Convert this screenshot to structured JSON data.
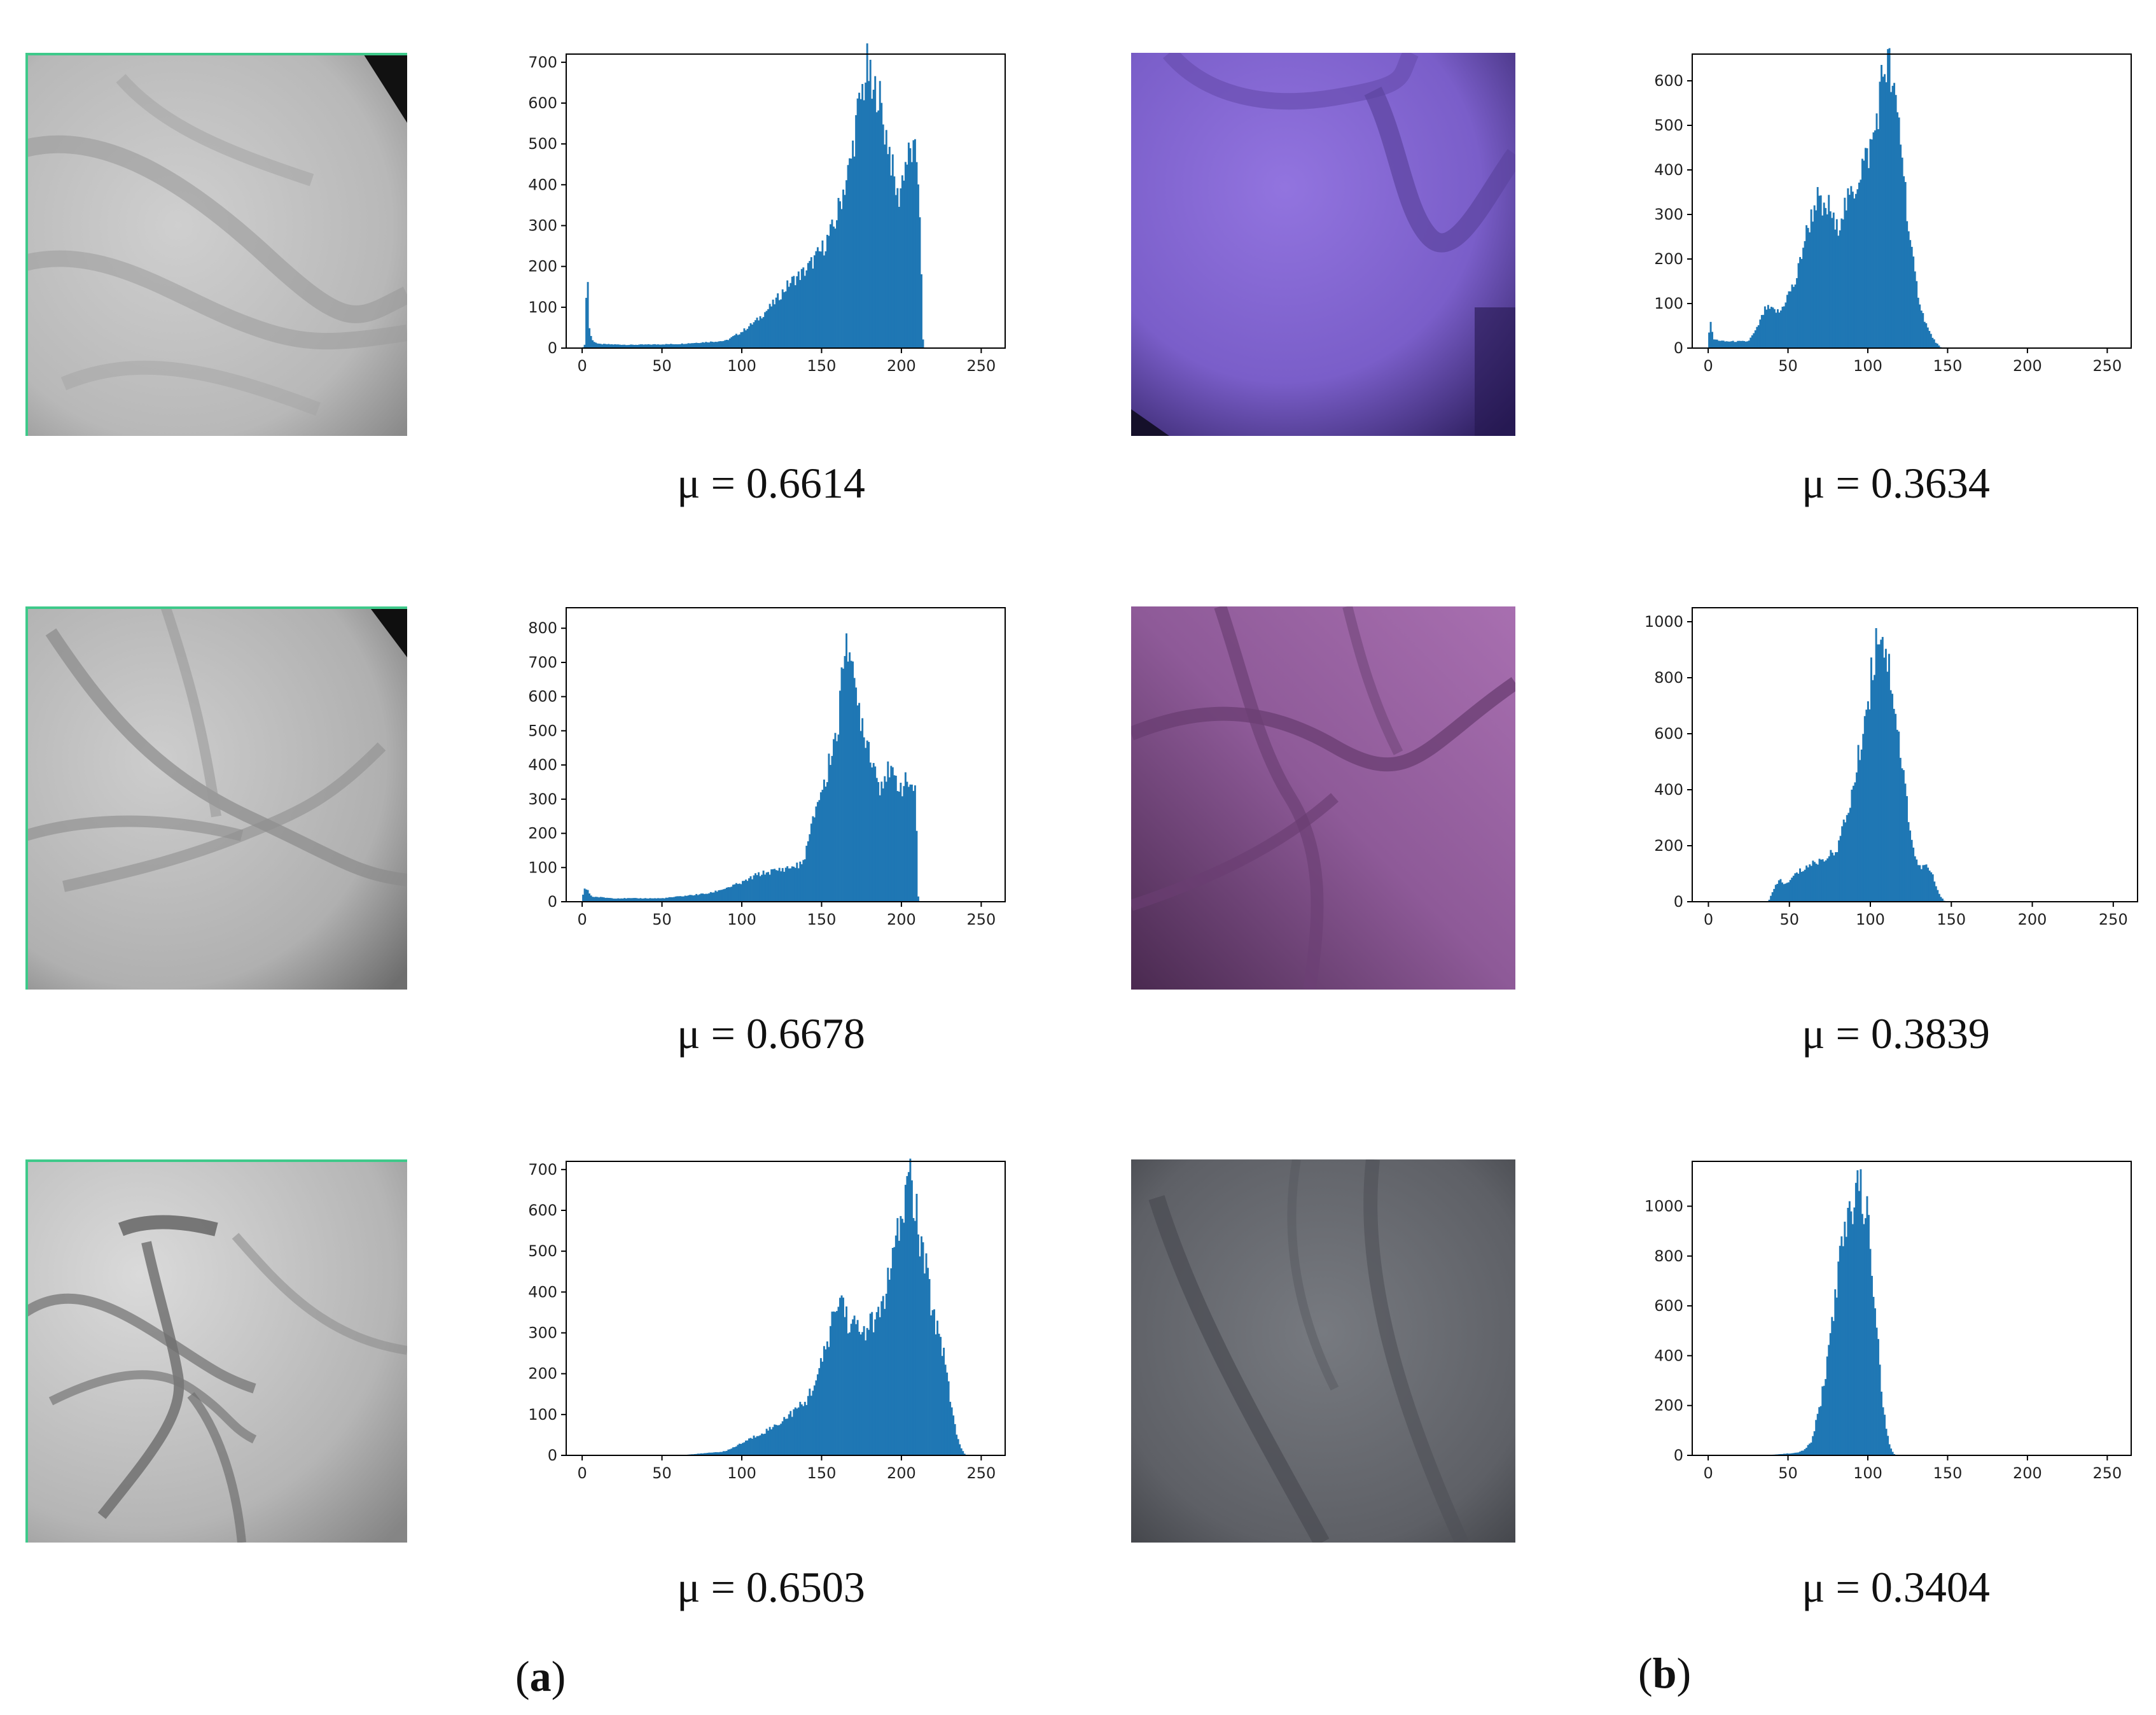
{
  "colors": {
    "bar": "#1f77b4",
    "axis": "#000000",
    "frame_green": "#3ec98a"
  },
  "mu_labels": [
    "μ = 0.6614",
    "μ = 0.3634",
    "μ = 0.6678",
    "μ = 0.3839",
    "μ = 0.6503",
    "μ = 0.3404"
  ],
  "panel_labels": {
    "a": {
      "open": "(",
      "letter": "a",
      "close": ")"
    },
    "b": {
      "open": "(",
      "letter": "b",
      "close": ")"
    }
  },
  "images": [
    {
      "name": "palm-vein-gray-1",
      "tone": "light-gray"
    },
    {
      "name": "palm-vein-purple-1",
      "tone": "violet"
    },
    {
      "name": "palm-vein-gray-2",
      "tone": "light-gray"
    },
    {
      "name": "palm-vein-purple-2",
      "tone": "magenta-purple"
    },
    {
      "name": "palm-vein-gray-3",
      "tone": "light-gray"
    },
    {
      "name": "palm-vein-dark-3",
      "tone": "dark-gray"
    }
  ],
  "chart_data": [
    {
      "type": "bar",
      "xlim": [
        -10,
        265
      ],
      "ylim": [
        0,
        720
      ],
      "xticks": [
        0,
        50,
        100,
        150,
        200,
        250
      ],
      "yticks": [
        0,
        100,
        200,
        300,
        400,
        500,
        600,
        700
      ],
      "peaks": [
        [
          0,
          0
        ],
        [
          2,
          10
        ],
        [
          3,
          260
        ],
        [
          4,
          60
        ],
        [
          6,
          20
        ],
        [
          10,
          10
        ],
        [
          30,
          8
        ],
        [
          60,
          10
        ],
        [
          90,
          18
        ],
        [
          100,
          40
        ],
        [
          110,
          70
        ],
        [
          120,
          110
        ],
        [
          130,
          160
        ],
        [
          140,
          190
        ],
        [
          150,
          240
        ],
        [
          158,
          300
        ],
        [
          163,
          380
        ],
        [
          168,
          450
        ],
        [
          172,
          560
        ],
        [
          176,
          640
        ],
        [
          179,
          690
        ],
        [
          182,
          600
        ],
        [
          185,
          650
        ],
        [
          188,
          560
        ],
        [
          192,
          500
        ],
        [
          195,
          420
        ],
        [
          198,
          360
        ],
        [
          202,
          450
        ],
        [
          206,
          480
        ],
        [
          210,
          460
        ],
        [
          212,
          300
        ],
        [
          213,
          40
        ],
        [
          214,
          0
        ],
        [
          256,
          0
        ]
      ]
    },
    {
      "type": "bar",
      "xlim": [
        -10,
        265
      ],
      "ylim": [
        0,
        660
      ],
      "xticks": [
        0,
        50,
        100,
        150,
        200,
        250
      ],
      "yticks": [
        0,
        100,
        200,
        300,
        400,
        500,
        600
      ],
      "peaks": [
        [
          0,
          0
        ],
        [
          1,
          75
        ],
        [
          3,
          20
        ],
        [
          10,
          15
        ],
        [
          25,
          15
        ],
        [
          30,
          40
        ],
        [
          36,
          90
        ],
        [
          45,
          80
        ],
        [
          50,
          120
        ],
        [
          55,
          150
        ],
        [
          60,
          240
        ],
        [
          65,
          300
        ],
        [
          68,
          340
        ],
        [
          72,
          300
        ],
        [
          76,
          320
        ],
        [
          80,
          260
        ],
        [
          84,
          310
        ],
        [
          88,
          330
        ],
        [
          92,
          360
        ],
        [
          96,
          410
        ],
        [
          100,
          430
        ],
        [
          104,
          480
        ],
        [
          108,
          580
        ],
        [
          110,
          630
        ],
        [
          113,
          640
        ],
        [
          116,
          560
        ],
        [
          119,
          520
        ],
        [
          122,
          420
        ],
        [
          126,
          250
        ],
        [
          130,
          150
        ],
        [
          134,
          80
        ],
        [
          138,
          40
        ],
        [
          142,
          15
        ],
        [
          146,
          0
        ],
        [
          256,
          0
        ]
      ]
    },
    {
      "type": "bar",
      "xlim": [
        -10,
        265
      ],
      "ylim": [
        0,
        860
      ],
      "xticks": [
        0,
        50,
        100,
        150,
        200,
        250
      ],
      "yticks": [
        0,
        100,
        200,
        300,
        400,
        500,
        600,
        700,
        800
      ],
      "peaks": [
        [
          0,
          0
        ],
        [
          1,
          40
        ],
        [
          3,
          35
        ],
        [
          6,
          15
        ],
        [
          20,
          10
        ],
        [
          50,
          10
        ],
        [
          80,
          25
        ],
        [
          100,
          55
        ],
        [
          110,
          80
        ],
        [
          120,
          90
        ],
        [
          130,
          100
        ],
        [
          138,
          110
        ],
        [
          143,
          200
        ],
        [
          147,
          290
        ],
        [
          150,
          330
        ],
        [
          153,
          350
        ],
        [
          156,
          450
        ],
        [
          160,
          500
        ],
        [
          163,
          650
        ],
        [
          165,
          830
        ],
        [
          167,
          760
        ],
        [
          170,
          620
        ],
        [
          174,
          560
        ],
        [
          178,
          480
        ],
        [
          182,
          420
        ],
        [
          186,
          340
        ],
        [
          190,
          380
        ],
        [
          195,
          360
        ],
        [
          200,
          340
        ],
        [
          205,
          350
        ],
        [
          208,
          330
        ],
        [
          209,
          350
        ],
        [
          210,
          30
        ],
        [
          211,
          0
        ],
        [
          256,
          0
        ]
      ]
    },
    {
      "type": "bar",
      "xlim": [
        -10,
        265
      ],
      "ylim": [
        0,
        1050
      ],
      "xticks": [
        0,
        50,
        100,
        150,
        200,
        250
      ],
      "yticks": [
        0,
        200,
        400,
        600,
        800,
        1000
      ],
      "peaks": [
        [
          0,
          0
        ],
        [
          37,
          0
        ],
        [
          40,
          40
        ],
        [
          44,
          80
        ],
        [
          48,
          60
        ],
        [
          54,
          100
        ],
        [
          62,
          130
        ],
        [
          70,
          150
        ],
        [
          76,
          170
        ],
        [
          80,
          200
        ],
        [
          85,
          300
        ],
        [
          90,
          420
        ],
        [
          95,
          600
        ],
        [
          100,
          780
        ],
        [
          104,
          950
        ],
        [
          106,
          1000
        ],
        [
          110,
          880
        ],
        [
          114,
          760
        ],
        [
          118,
          560
        ],
        [
          122,
          380
        ],
        [
          126,
          200
        ],
        [
          130,
          120
        ],
        [
          134,
          130
        ],
        [
          138,
          100
        ],
        [
          142,
          30
        ],
        [
          146,
          0
        ],
        [
          256,
          0
        ]
      ]
    },
    {
      "type": "bar",
      "xlim": [
        -10,
        265
      ],
      "ylim": [
        0,
        720
      ],
      "xticks": [
        0,
        50,
        100,
        150,
        200,
        250
      ],
      "yticks": [
        0,
        100,
        200,
        300,
        400,
        500,
        600,
        700
      ],
      "peaks": [
        [
          0,
          0
        ],
        [
          60,
          0
        ],
        [
          70,
          3
        ],
        [
          90,
          10
        ],
        [
          100,
          30
        ],
        [
          110,
          50
        ],
        [
          120,
          70
        ],
        [
          130,
          100
        ],
        [
          140,
          130
        ],
        [
          148,
          200
        ],
        [
          152,
          250
        ],
        [
          156,
          320
        ],
        [
          160,
          370
        ],
        [
          163,
          390
        ],
        [
          166,
          330
        ],
        [
          170,
          320
        ],
        [
          175,
          300
        ],
        [
          180,
          320
        ],
        [
          185,
          330
        ],
        [
          190,
          400
        ],
        [
          195,
          480
        ],
        [
          200,
          580
        ],
        [
          203,
          640
        ],
        [
          205,
          700
        ],
        [
          208,
          620
        ],
        [
          212,
          520
        ],
        [
          216,
          440
        ],
        [
          220,
          340
        ],
        [
          224,
          300
        ],
        [
          228,
          220
        ],
        [
          232,
          100
        ],
        [
          236,
          30
        ],
        [
          240,
          0
        ],
        [
          256,
          0
        ]
      ]
    },
    {
      "type": "bar",
      "xlim": [
        -10,
        265
      ],
      "ylim": [
        0,
        1180
      ],
      "xticks": [
        0,
        50,
        100,
        150,
        200,
        250
      ],
      "yticks": [
        0,
        200,
        400,
        600,
        800,
        1000
      ],
      "peaks": [
        [
          0,
          0
        ],
        [
          35,
          0
        ],
        [
          45,
          5
        ],
        [
          55,
          10
        ],
        [
          60,
          20
        ],
        [
          65,
          60
        ],
        [
          70,
          200
        ],
        [
          74,
          350
        ],
        [
          78,
          560
        ],
        [
          82,
          760
        ],
        [
          86,
          900
        ],
        [
          90,
          1000
        ],
        [
          93,
          1110
        ],
        [
          96,
          1050
        ],
        [
          99,
          980
        ],
        [
          102,
          820
        ],
        [
          105,
          560
        ],
        [
          108,
          300
        ],
        [
          111,
          120
        ],
        [
          114,
          30
        ],
        [
          117,
          0
        ],
        [
          256,
          0
        ]
      ]
    }
  ]
}
